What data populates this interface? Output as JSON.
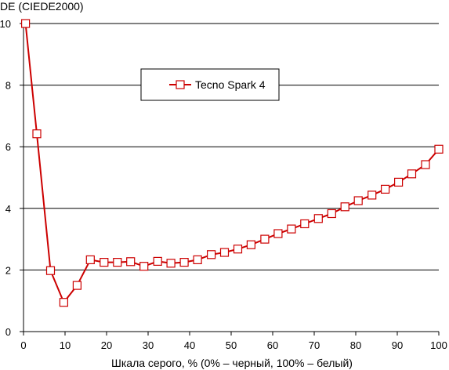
{
  "chart_data": {
    "type": "line",
    "title": "",
    "ylabel": "DE (CIEDE2000)",
    "xlabel": "Шкала серого, % (0% – черный, 100% – белый)",
    "xlim": [
      0,
      100
    ],
    "ylim": [
      0,
      10
    ],
    "x_ticks": [
      "0",
      "10",
      "20",
      "30",
      "40",
      "50",
      "60",
      "70",
      "80",
      "90",
      "100"
    ],
    "y_ticks": [
      "0",
      "2",
      "4",
      "6",
      "8",
      "10"
    ],
    "grid": "horizontal",
    "legend": "top-center",
    "colors": {
      "series": "#cc0000",
      "grid": "#000000",
      "marker_fill": "#ffffff"
    },
    "series": [
      {
        "name": "Tecno Spark 4",
        "x": [
          0.5,
          3.2,
          6.5,
          9.7,
          12.9,
          16.1,
          19.4,
          22.6,
          25.8,
          29.0,
          32.3,
          35.5,
          38.7,
          41.9,
          45.2,
          48.4,
          51.6,
          54.8,
          58.1,
          61.3,
          64.5,
          67.7,
          71.0,
          74.2,
          77.4,
          80.6,
          83.9,
          87.1,
          90.3,
          93.5,
          96.8,
          100.0
        ],
        "values": [
          10.0,
          6.42,
          1.98,
          0.95,
          1.5,
          2.33,
          2.25,
          2.25,
          2.27,
          2.12,
          2.28,
          2.22,
          2.25,
          2.33,
          2.5,
          2.57,
          2.68,
          2.82,
          3.0,
          3.18,
          3.33,
          3.5,
          3.67,
          3.83,
          4.05,
          4.25,
          4.43,
          4.62,
          4.85,
          5.12,
          5.42,
          5.92
        ]
      }
    ]
  }
}
